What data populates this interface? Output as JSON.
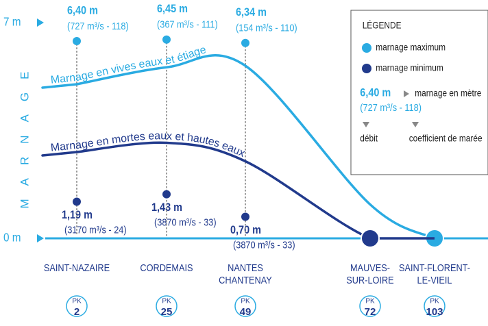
{
  "chart_data": {
    "type": "line",
    "y_axis_label": "MARNAGE",
    "ylim": [
      0,
      7
    ],
    "yticks": [
      {
        "value": 7,
        "label": "7 m"
      },
      {
        "value": 0,
        "label": "0 m"
      }
    ],
    "categories": [
      [
        "SAINT-NAZAIRE"
      ],
      [
        "CORDEMAIS"
      ],
      [
        "NANTES",
        "CHANTENAY"
      ],
      [
        "MAUVES-",
        "SUR-LOIRE"
      ],
      [
        "SAINT-FLORENT-",
        "LE-VIEIL"
      ]
    ],
    "pk_label": "PK",
    "pk": [
      2,
      25,
      49,
      72,
      103
    ],
    "series": [
      {
        "name": "Marnage en vives eaux et étiage",
        "color": "#2aabe2",
        "values": [
          5.0,
          5.55,
          5.6,
          1.1,
          0
        ]
      },
      {
        "name": "Marnage en mortes eaux et hautes eaux",
        "color": "#213a8c",
        "values": [
          2.8,
          3.1,
          2.5,
          0,
          0
        ]
      }
    ],
    "points": [
      {
        "name": "marnage maximum",
        "color": "#2aabe2",
        "values": [
          6.4,
          6.45,
          6.34,
          null,
          null
        ],
        "value_labels": [
          "6,40 m",
          "6,45 m",
          "6,34 m",
          null,
          null
        ],
        "details": [
          "(727 m³/s - 118)",
          "(367 m³/s - 111)",
          "(154 m³/s - 110)",
          null,
          null
        ]
      },
      {
        "name": "marnage minimum",
        "color": "#213a8c",
        "values": [
          1.19,
          1.43,
          0.7,
          null,
          null
        ],
        "value_labels": [
          "1,19 m",
          "1,43 m",
          "0,70 m",
          null,
          null
        ],
        "details": [
          "(3170 m³/s - 24)",
          "(3870 m³/s - 33)",
          "(3870 m³/s - 33)",
          null,
          null
        ]
      }
    ],
    "legend": {
      "title": "LÉGENDE",
      "example_value": "6,40 m",
      "example_meaning": "marnage en mètre",
      "example_detail": "(727 m³/s - 118)",
      "flow": "débit",
      "tide": "coefficient de marée"
    }
  }
}
